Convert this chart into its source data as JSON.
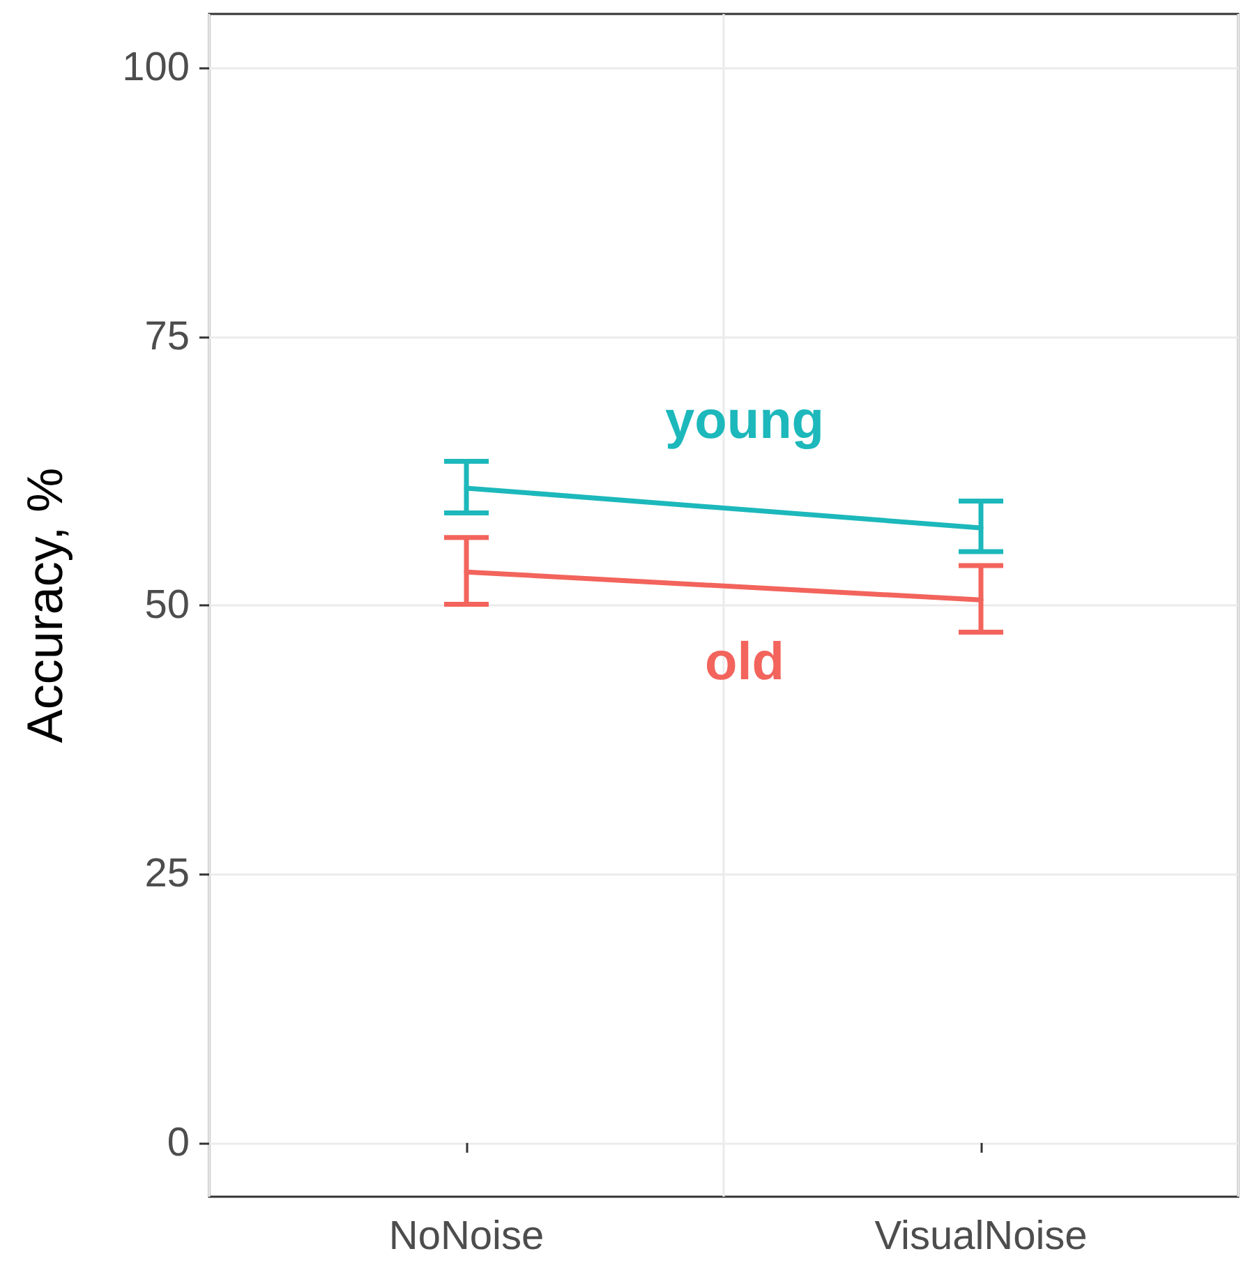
{
  "chart_data": {
    "type": "line",
    "ylabel": "Accuracy, %",
    "categories": [
      "NoNoise",
      "VisualNoise"
    ],
    "series": [
      {
        "name": "young",
        "color": "#1cb8bb",
        "values": [
          60.9,
          57.2
        ],
        "errors": [
          [
            58.6,
            63.4
          ],
          [
            55.0,
            59.7
          ]
        ]
      },
      {
        "name": "old",
        "color": "#f2645c",
        "values": [
          53.1,
          50.5
        ],
        "errors": [
          [
            50.1,
            56.3
          ],
          [
            47.5,
            53.7
          ]
        ]
      }
    ],
    "ylim": [
      -5,
      105
    ],
    "yticks": [
      0,
      25,
      50,
      75,
      100
    ],
    "grid": true,
    "legend": false,
    "marker": "none",
    "line_style": "solid"
  }
}
